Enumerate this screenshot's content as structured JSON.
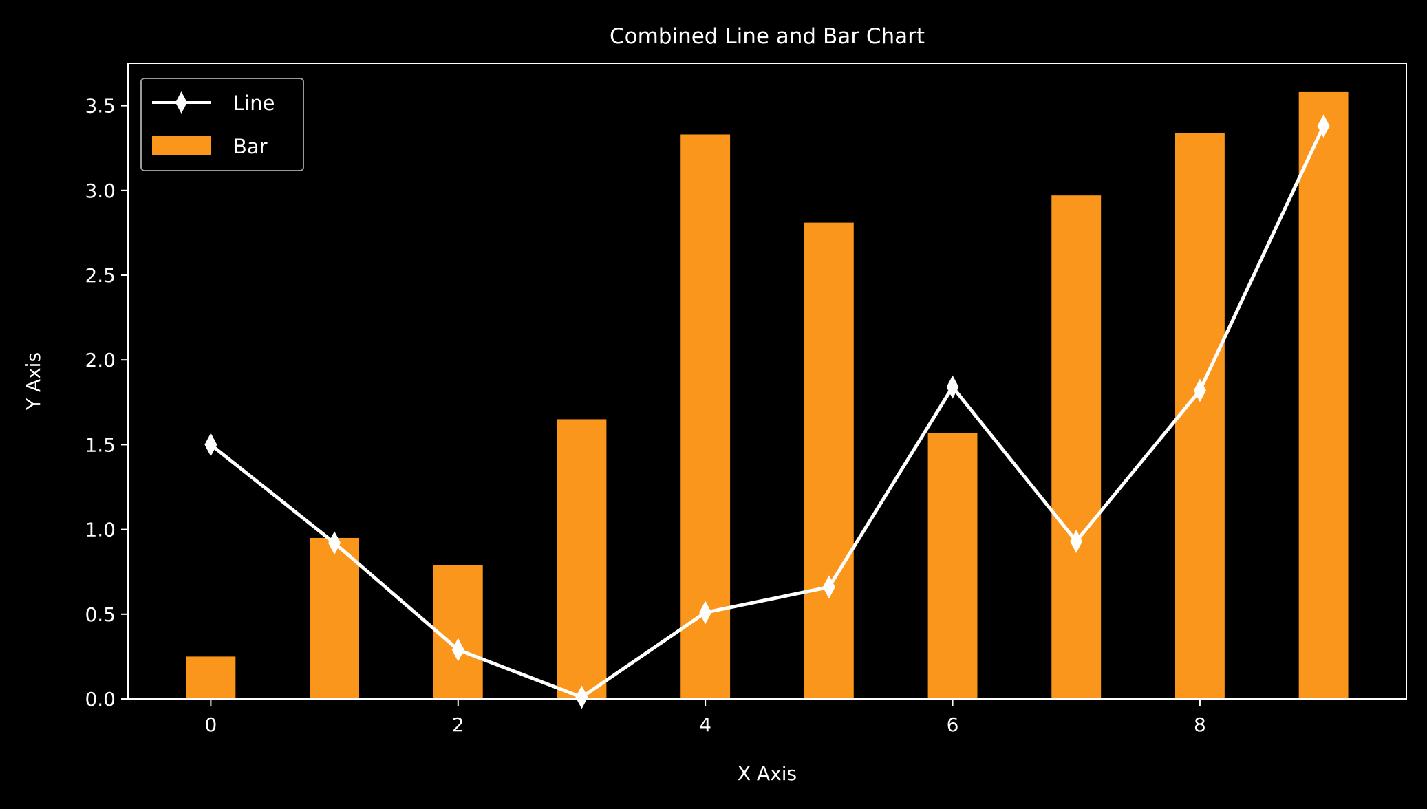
{
  "chart_data": {
    "type": "bar+line",
    "title": "Combined Line and Bar Chart",
    "xlabel": "X Axis",
    "ylabel": "Y Axis",
    "x": [
      0,
      1,
      2,
      3,
      4,
      5,
      6,
      7,
      8,
      9
    ],
    "xlim": [
      -0.67,
      9.67
    ],
    "ylim": [
      0,
      3.75
    ],
    "xticks": [
      0,
      2,
      4,
      6,
      8
    ],
    "yticks": [
      0.0,
      0.5,
      1.0,
      1.5,
      2.0,
      2.5,
      3.0,
      3.5
    ],
    "xtick_labels": [
      "0",
      "2",
      "4",
      "6",
      "8"
    ],
    "ytick_labels": [
      "0.0",
      "0.5",
      "1.0",
      "1.5",
      "2.0",
      "2.5",
      "3.0",
      "3.5"
    ],
    "grid": false,
    "legend_position": "upper-left",
    "background": "#000000",
    "foreground": "#ffffff",
    "series": [
      {
        "name": "Bar",
        "type": "bar",
        "color": "#f9961b",
        "values": [
          0.25,
          0.95,
          0.79,
          1.65,
          3.33,
          2.81,
          1.57,
          2.97,
          3.34,
          3.58
        ]
      },
      {
        "name": "Line",
        "type": "line",
        "marker": "thin-diamond",
        "color": "#ffffff",
        "values": [
          1.5,
          0.92,
          0.29,
          0.01,
          0.51,
          0.66,
          1.84,
          0.93,
          1.82,
          3.38
        ]
      }
    ]
  }
}
